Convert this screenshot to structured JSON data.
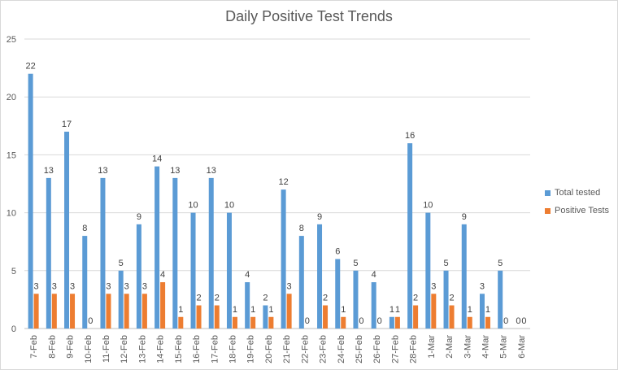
{
  "chart_data": {
    "type": "bar",
    "title": "Daily Positive Test Trends",
    "categories": [
      "7-Feb",
      "8-Feb",
      "9-Feb",
      "10-Feb",
      "11-Feb",
      "12-Feb",
      "13-Feb",
      "14-Feb",
      "15-Feb",
      "16-Feb",
      "17-Feb",
      "18-Feb",
      "19-Feb",
      "20-Feb",
      "21-Feb",
      "22-Feb",
      "23-Feb",
      "24-Feb",
      "25-Feb",
      "26-Feb",
      "27-Feb",
      "28-Feb",
      "1-Mar",
      "2-Mar",
      "3-Mar",
      "4-Mar",
      "5-Mar",
      "6-Mar"
    ],
    "series": [
      {
        "name": "Total tested",
        "color": "#5b9bd5",
        "values": [
          22,
          13,
          17,
          8,
          13,
          5,
          9,
          14,
          13,
          10,
          13,
          10,
          4,
          2,
          12,
          8,
          9,
          6,
          5,
          4,
          1,
          16,
          10,
          5,
          9,
          3,
          5,
          0
        ]
      },
      {
        "name": "Positive Tests",
        "color": "#ed7d31",
        "values": [
          3,
          3,
          3,
          0,
          3,
          3,
          3,
          4,
          1,
          2,
          2,
          1,
          1,
          1,
          3,
          0,
          2,
          1,
          0,
          0,
          1,
          2,
          3,
          2,
          1,
          1,
          0,
          0
        ]
      }
    ],
    "ylim": [
      0,
      25
    ],
    "yticks": [
      0,
      5,
      10,
      15,
      20,
      25
    ],
    "grid": true,
    "legend_position": "right"
  }
}
